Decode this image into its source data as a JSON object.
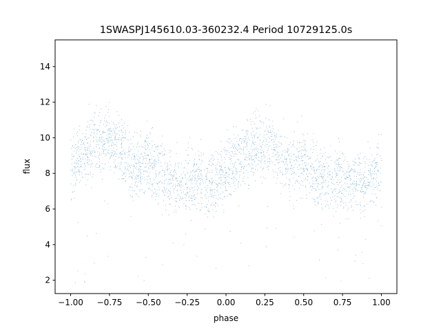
{
  "chart_data": {
    "type": "scatter",
    "title": "1SWASPJ145610.03-360232.4 Period 10729125.0s",
    "xlabel": "phase",
    "ylabel": "flux",
    "xlim": [
      -1.1,
      1.1
    ],
    "ylim": [
      1.25,
      15.5
    ],
    "xticks": [
      -1.0,
      -0.75,
      -0.5,
      -0.25,
      0.0,
      0.25,
      0.5,
      0.75,
      1.0
    ],
    "xtick_labels": [
      "−1.00",
      "−0.75",
      "−0.50",
      "−0.25",
      "0.00",
      "0.25",
      "0.50",
      "0.75",
      "1.00"
    ],
    "yticks": [
      2,
      4,
      6,
      8,
      10,
      12,
      14
    ],
    "ytick_labels": [
      "2",
      "4",
      "6",
      "8",
      "10",
      "12",
      "14"
    ],
    "marker_color": "#1f77b4",
    "grid": false,
    "phase_curve": {
      "description_points": "mean flux vs phase (folded light curve, repeated over two cycles)",
      "phase": [
        -1.0,
        -0.9,
        -0.8,
        -0.7,
        -0.6,
        -0.5,
        -0.4,
        -0.3,
        -0.2,
        -0.1,
        0.0,
        0.1,
        0.2,
        0.3,
        0.4,
        0.5,
        0.6,
        0.7,
        0.8,
        0.9,
        1.0
      ],
      "flux": [
        8.3,
        9.2,
        9.8,
        9.6,
        8.4,
        8.6,
        7.8,
        7.5,
        7.6,
        7.4,
        8.0,
        9.0,
        9.7,
        9.3,
        8.2,
        8.6,
        7.7,
        7.5,
        7.6,
        7.5,
        8.3
      ]
    }
  }
}
